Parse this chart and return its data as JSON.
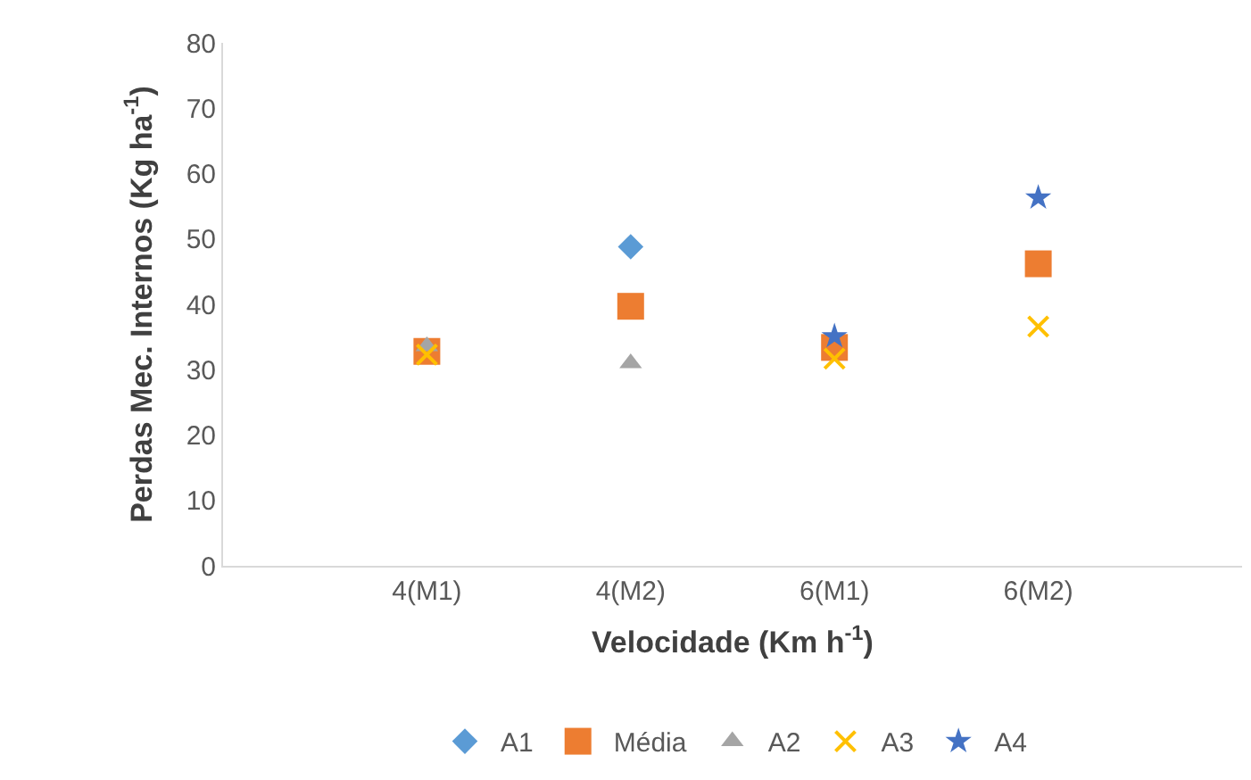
{
  "chart_data": {
    "type": "scatter",
    "xlabel": "Velocidade (Km h$^{-1}$)",
    "ylabel": "Perdas Mec. Internos (Kg ha$^{-1}$)",
    "categories": [
      null,
      "4(M1)",
      "4(M2)",
      "6(M1)",
      "6(M2)",
      null
    ],
    "series": [
      {
        "name": "A1",
        "color": "#5b9bd5",
        "marker": "diamond",
        "values": [
          null,
          null,
          48.8,
          null,
          null,
          null
        ]
      },
      {
        "name": "Média",
        "color": "#ed7d31",
        "marker": "square",
        "values": [
          null,
          32.8,
          39.7,
          33.4,
          46.2,
          null
        ]
      },
      {
        "name": "A2",
        "color": "#a5a5a5",
        "marker": "triangle",
        "values": [
          null,
          33.6,
          31,
          null,
          null,
          null
        ]
      },
      {
        "name": "A3",
        "color": "#ffc000",
        "marker": "cross",
        "values": [
          null,
          32.3,
          null,
          31.7,
          36.6,
          null
        ]
      },
      {
        "name": "A4",
        "color": "#4472c4",
        "marker": "star",
        "values": [
          null,
          null,
          null,
          35.1,
          56.3,
          null
        ]
      }
    ],
    "ylim": [
      0,
      80
    ],
    "yticks": [
      0,
      10,
      20,
      30,
      40,
      50,
      60,
      70,
      80
    ],
    "grid": false,
    "legend": "bottom"
  }
}
